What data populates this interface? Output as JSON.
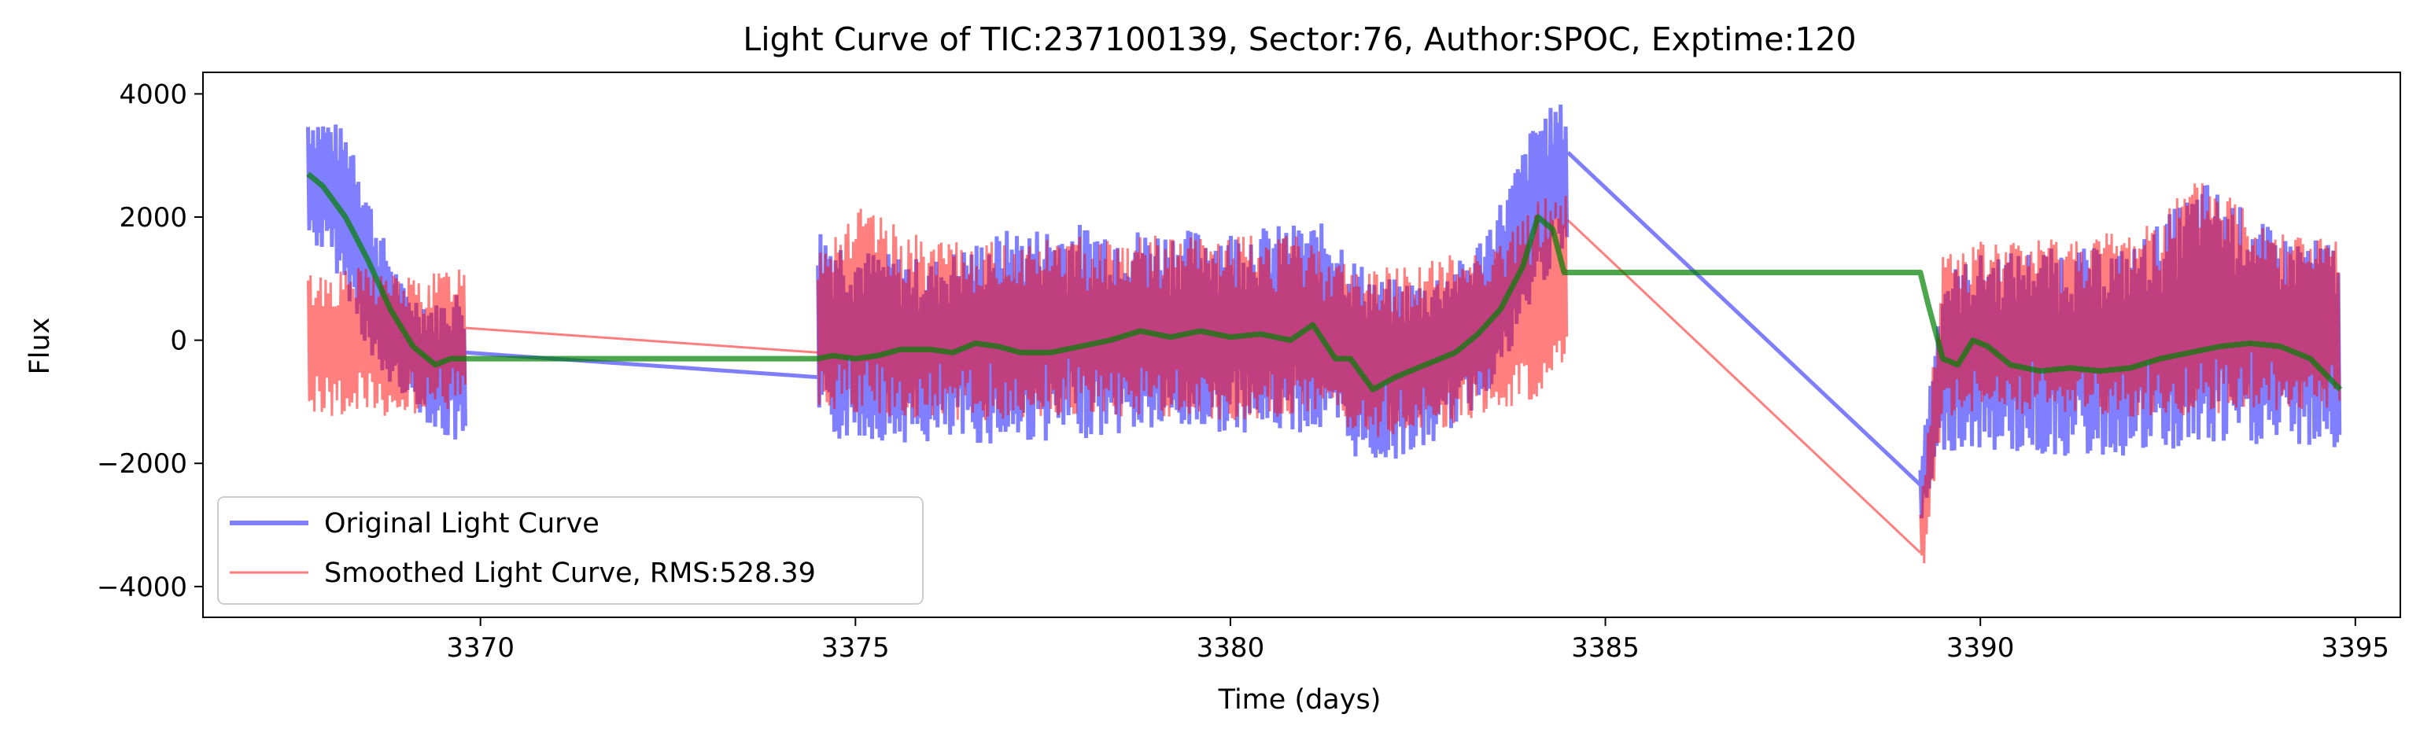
{
  "chart_data": {
    "type": "line",
    "title": "Light Curve of TIC:237100139, Sector:76, Author:SPOC, Exptime:120",
    "xlabel": "Time (days)",
    "ylabel": "Flux",
    "xlim": [
      3366.3,
      3395.6
    ],
    "ylim": [
      -4500,
      4350
    ],
    "xticks": [
      3370,
      3375,
      3380,
      3385,
      3390,
      3395
    ],
    "xtick_labels": [
      "3370",
      "3375",
      "3380",
      "3385",
      "3390",
      "3395"
    ],
    "yticks": [
      -4000,
      -2000,
      0,
      2000,
      4000
    ],
    "ytick_labels": [
      "−4000",
      "−2000",
      "0",
      "2000",
      "4000"
    ],
    "grid": false,
    "legend_position": "lower-left",
    "series": [
      {
        "name": "Original Light Curve",
        "color": "#0000ff",
        "opacity": 0.5,
        "envelope": [
          [
            3367.7,
            1600,
            3700
          ],
          [
            3368.0,
            1300,
            3600
          ],
          [
            3368.3,
            500,
            3300
          ],
          [
            3368.6,
            -600,
            2000
          ],
          [
            3369.0,
            -900,
            800
          ],
          [
            3369.4,
            -1500,
            600
          ],
          [
            3369.8,
            -1800,
            900
          ],
          [
            3374.5,
            -1700,
            1900
          ],
          [
            3375.0,
            -1600,
            1500
          ],
          [
            3376.0,
            -1700,
            1300
          ],
          [
            3377.0,
            -1700,
            1800
          ],
          [
            3378.0,
            -1600,
            1900
          ],
          [
            3379.0,
            -1500,
            1800
          ],
          [
            3380.0,
            -1500,
            1800
          ],
          [
            3380.9,
            -1500,
            1900
          ],
          [
            3381.4,
            -1600,
            1900
          ],
          [
            3381.6,
            -1900,
            1400
          ],
          [
            3382.0,
            -2000,
            1000
          ],
          [
            3382.6,
            -1800,
            1000
          ],
          [
            3383.2,
            -1200,
            1400
          ],
          [
            3383.7,
            -400,
            2500
          ],
          [
            3384.1,
            800,
            3700
          ],
          [
            3384.5,
            1500,
            3900
          ],
          [
            3389.2,
            -3100,
            -2000
          ],
          [
            3389.5,
            -1800,
            1100
          ],
          [
            3390.0,
            -1800,
            1400
          ],
          [
            3391.0,
            -1900,
            1500
          ],
          [
            3392.0,
            -1900,
            1500
          ],
          [
            3393.0,
            -1800,
            2600
          ],
          [
            3394.0,
            -1700,
            1700
          ],
          [
            3394.8,
            -1800,
            1600
          ]
        ],
        "connectors": [
          [
            3369.8,
            -200,
            3374.5,
            -600
          ],
          [
            3384.5,
            3050,
            3389.2,
            -2350
          ]
        ]
      },
      {
        "name": "Smoothed Light Curve, RMS:528.39",
        "color": "#ff0000",
        "opacity": 0.5,
        "envelope": [
          [
            3367.7,
            -1200,
            1100
          ],
          [
            3368.5,
            -1300,
            1200
          ],
          [
            3369.2,
            -1200,
            1000
          ],
          [
            3369.8,
            -1100,
            1300
          ],
          [
            3374.5,
            -1300,
            1700
          ],
          [
            3375.0,
            -1300,
            2200
          ],
          [
            3376.0,
            -1300,
            1600
          ],
          [
            3377.0,
            -1300,
            1600
          ],
          [
            3378.0,
            -1200,
            1700
          ],
          [
            3379.0,
            -1300,
            1700
          ],
          [
            3380.0,
            -1300,
            1700
          ],
          [
            3380.9,
            -1300,
            1700
          ],
          [
            3381.4,
            -1200,
            1400
          ],
          [
            3381.6,
            -1500,
            1200
          ],
          [
            3382.0,
            -1600,
            1200
          ],
          [
            3382.6,
            -1500,
            1300
          ],
          [
            3383.2,
            -1300,
            1500
          ],
          [
            3383.7,
            -1100,
            1700
          ],
          [
            3384.1,
            -1000,
            2300
          ],
          [
            3384.5,
            -200,
            2500
          ],
          [
            3389.2,
            -4100,
            -2800
          ],
          [
            3389.5,
            -1300,
            1500
          ],
          [
            3390.0,
            -1200,
            1600
          ],
          [
            3391.0,
            -1200,
            1700
          ],
          [
            3392.0,
            -1300,
            1800
          ],
          [
            3393.0,
            -1200,
            2700
          ],
          [
            3394.0,
            -1200,
            1900
          ],
          [
            3394.8,
            -1100,
            1600
          ]
        ],
        "connectors": [
          [
            3369.8,
            200,
            3374.5,
            -200
          ],
          [
            3384.5,
            1950,
            3389.2,
            -3450
          ]
        ]
      },
      {
        "name": "",
        "color": "#008000",
        "opacity": 0.7,
        "values": [
          [
            3367.7,
            2700
          ],
          [
            3367.9,
            2500
          ],
          [
            3368.2,
            2000
          ],
          [
            3368.5,
            1300
          ],
          [
            3368.8,
            500
          ],
          [
            3369.1,
            -100
          ],
          [
            3369.4,
            -400
          ],
          [
            3369.6,
            -300
          ],
          [
            3369.8,
            -300
          ],
          [
            3374.5,
            -300
          ],
          [
            3374.7,
            -250
          ],
          [
            3375.0,
            -300
          ],
          [
            3375.3,
            -250
          ],
          [
            3375.6,
            -150
          ],
          [
            3376.0,
            -150
          ],
          [
            3376.3,
            -200
          ],
          [
            3376.6,
            -50
          ],
          [
            3376.9,
            -100
          ],
          [
            3377.2,
            -200
          ],
          [
            3377.6,
            -200
          ],
          [
            3378.0,
            -100
          ],
          [
            3378.4,
            0
          ],
          [
            3378.8,
            150
          ],
          [
            3379.2,
            50
          ],
          [
            3379.6,
            150
          ],
          [
            3380.0,
            50
          ],
          [
            3380.4,
            100
          ],
          [
            3380.8,
            0
          ],
          [
            3381.1,
            250
          ],
          [
            3381.4,
            -300
          ],
          [
            3381.6,
            -300
          ],
          [
            3381.9,
            -800
          ],
          [
            3382.2,
            -600
          ],
          [
            3382.6,
            -400
          ],
          [
            3383.0,
            -200
          ],
          [
            3383.3,
            100
          ],
          [
            3383.6,
            500
          ],
          [
            3383.9,
            1200
          ],
          [
            3384.1,
            2000
          ],
          [
            3384.3,
            1800
          ],
          [
            3384.45,
            1100
          ],
          [
            3384.6,
            1100
          ],
          [
            3389.2,
            1100
          ],
          [
            3389.3,
            600
          ],
          [
            3389.5,
            -300
          ],
          [
            3389.7,
            -400
          ],
          [
            3389.9,
            0
          ],
          [
            3390.1,
            -100
          ],
          [
            3390.4,
            -400
          ],
          [
            3390.8,
            -500
          ],
          [
            3391.2,
            -450
          ],
          [
            3391.6,
            -500
          ],
          [
            3392.0,
            -450
          ],
          [
            3392.4,
            -300
          ],
          [
            3392.8,
            -200
          ],
          [
            3393.2,
            -100
          ],
          [
            3393.6,
            -50
          ],
          [
            3394.0,
            -100
          ],
          [
            3394.4,
            -300
          ],
          [
            3394.8,
            -800
          ]
        ]
      }
    ]
  }
}
